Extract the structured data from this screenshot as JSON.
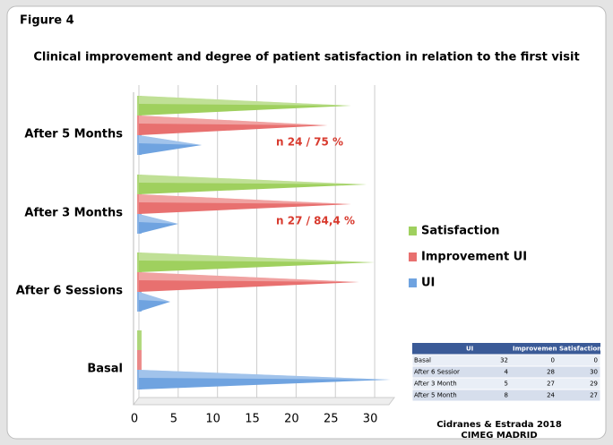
{
  "figure_label": "Figure 4",
  "chart_data": {
    "type": "cone-bar-horizontal",
    "title": "Clinical improvement and degree of patient satisfaction in relation to the first visit",
    "categories": [
      "Basal",
      "After 6 Sessions",
      "After 3 Months",
      "After 5 Months"
    ],
    "series": [
      {
        "name": "UI",
        "color": "#6fa3e0",
        "values": [
          32,
          4,
          5,
          8
        ]
      },
      {
        "name": "Improvement UI",
        "color": "#e8706f",
        "values": [
          0,
          28,
          27,
          24
        ]
      },
      {
        "name": "Satisfaction",
        "color": "#9fd05e",
        "values": [
          0,
          30,
          29,
          27
        ]
      }
    ],
    "xlim": [
      0,
      32.5
    ],
    "xticks": [
      0,
      5,
      10,
      15,
      20,
      25,
      30
    ],
    "grid": true,
    "legend": "right",
    "annotations": [
      {
        "text": "n 24 / 75 %",
        "category": 3
      },
      {
        "text": "n 27 / 84,4 %",
        "category": 2
      }
    ]
  },
  "data_table": {
    "columns": [
      "UI",
      "Improvemen",
      "Satisfaction"
    ],
    "rows": [
      "Basal",
      "After 6 Sessior",
      "After 3 Month",
      "After 5 Month"
    ]
  },
  "credit": [
    "Cidranes & Estrada 2018",
    "CIMEG MADRID"
  ]
}
